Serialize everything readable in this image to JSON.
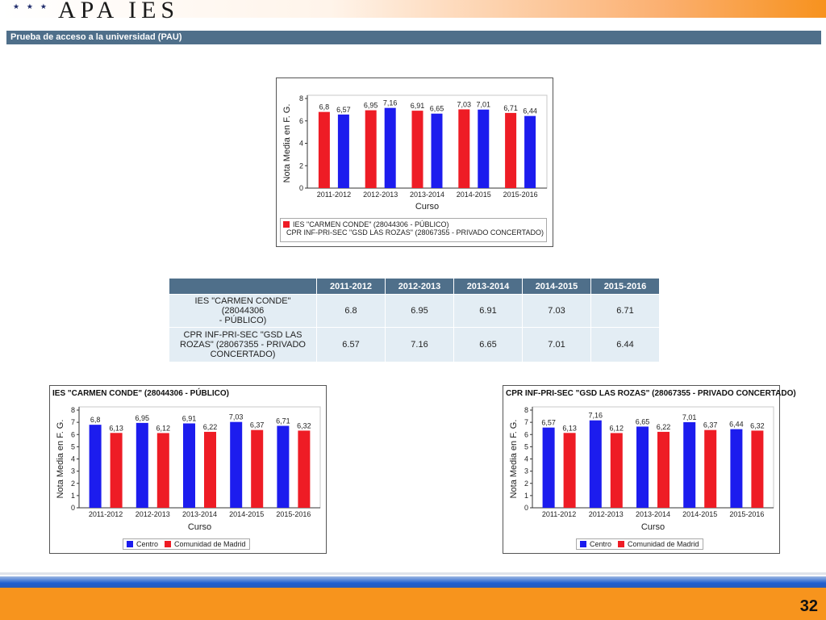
{
  "header": {
    "logo_text": "APA IES",
    "logo_stars": "★ ★ ★"
  },
  "section_title": "Prueba de acceso a la universidad (PAU)",
  "colors": {
    "red": "#ee1c25",
    "blue": "#1c1cee",
    "header_bg": "#4f6f8a",
    "cell_bg": "#e3edf4",
    "orange": "#f7941d"
  },
  "table": {
    "columns": [
      "2011-2012",
      "2012-2013",
      "2013-2014",
      "2014-2015",
      "2015-2016"
    ],
    "rows": [
      {
        "label": "IES \"CARMEN CONDE\" (28044306 - PÚBLICO)",
        "label_lines": [
          "IES \"CARMEN CONDE\" (28044306",
          "- PÚBLICO)"
        ],
        "values": [
          "6.8",
          "6.95",
          "6.91",
          "7.03",
          "6.71"
        ]
      },
      {
        "label": "CPR INF-PRI-SEC \"GSD LAS ROZAS\" (28067355 - PRIVADO CONCERTADO)",
        "label_lines": [
          "CPR INF-PRI-SEC \"GSD LAS",
          "ROZAS\" (28067355 - PRIVADO",
          "CONCERTADO)"
        ],
        "values": [
          "6.57",
          "7.16",
          "6.65",
          "7.01",
          "6.44"
        ]
      }
    ]
  },
  "page_number": "32",
  "chart_data": [
    {
      "type": "bar",
      "title": "",
      "xlabel": "Curso",
      "ylabel": "Nota Media en F. G.",
      "ylim": [
        0,
        8
      ],
      "yticks": [
        0,
        2,
        4,
        6,
        8
      ],
      "categories": [
        "2011-2012",
        "2012-2013",
        "2013-2014",
        "2014-2015",
        "2015-2016"
      ],
      "series": [
        {
          "name": "IES \"CARMEN CONDE\" (28044306 - PÚBLICO)",
          "color": "#ee1c25",
          "values": [
            6.8,
            6.95,
            6.91,
            7.03,
            6.71
          ],
          "labels": [
            "6,8",
            "6,95",
            "6,91",
            "7,03",
            "6,71"
          ]
        },
        {
          "name": "CPR INF-PRI-SEC \"GSD LAS ROZAS\" (28067355 - PRIVADO CONCERTADO)",
          "color": "#1c1cee",
          "values": [
            6.57,
            7.16,
            6.65,
            7.01,
            6.44
          ],
          "labels": [
            "6,57",
            "7,16",
            "6,65",
            "7,01",
            "6,44"
          ]
        }
      ],
      "legend": "bottom",
      "grid": false
    },
    {
      "type": "bar",
      "title": "IES \"CARMEN CONDE\" (28044306 - PÚBLICO)",
      "xlabel": "Curso",
      "ylabel": "Nota Media en F. G.",
      "ylim": [
        0,
        8
      ],
      "yticks": [
        0,
        1,
        2,
        3,
        4,
        5,
        6,
        7,
        8
      ],
      "categories": [
        "2011-2012",
        "2012-2013",
        "2013-2014",
        "2014-2015",
        "2015-2016"
      ],
      "series": [
        {
          "name": "Centro",
          "color": "#1c1cee",
          "values": [
            6.8,
            6.95,
            6.91,
            7.03,
            6.71
          ],
          "labels": [
            "6,8",
            "6,95",
            "6,91",
            "7,03",
            "6,71"
          ]
        },
        {
          "name": "Comunidad de Madrid",
          "color": "#ee1c25",
          "values": [
            6.13,
            6.12,
            6.22,
            6.37,
            6.32
          ],
          "labels": [
            "6,13",
            "6,12",
            "6,22",
            "6,37",
            "6,32"
          ]
        }
      ],
      "legend": "bottom",
      "grid": false
    },
    {
      "type": "bar",
      "title": "CPR INF-PRI-SEC \"GSD LAS ROZAS\" (28067355 - PRIVADO CONCERTADO)",
      "xlabel": "Curso",
      "ylabel": "Nota Media en F. G.",
      "ylim": [
        0,
        8
      ],
      "yticks": [
        0,
        1,
        2,
        3,
        4,
        5,
        6,
        7,
        8
      ],
      "categories": [
        "2011-2012",
        "2012-2013",
        "2013-2014",
        "2014-2015",
        "2015-2016"
      ],
      "series": [
        {
          "name": "Centro",
          "color": "#1c1cee",
          "values": [
            6.57,
            7.16,
            6.65,
            7.01,
            6.44
          ],
          "labels": [
            "6,57",
            "7,16",
            "6,65",
            "7,01",
            "6,44"
          ]
        },
        {
          "name": "Comunidad de Madrid",
          "color": "#ee1c25",
          "values": [
            6.13,
            6.12,
            6.22,
            6.37,
            6.32
          ],
          "labels": [
            "6,13",
            "6,12",
            "6,22",
            "6,37",
            "6,32"
          ]
        }
      ],
      "legend": "bottom",
      "grid": false
    }
  ]
}
